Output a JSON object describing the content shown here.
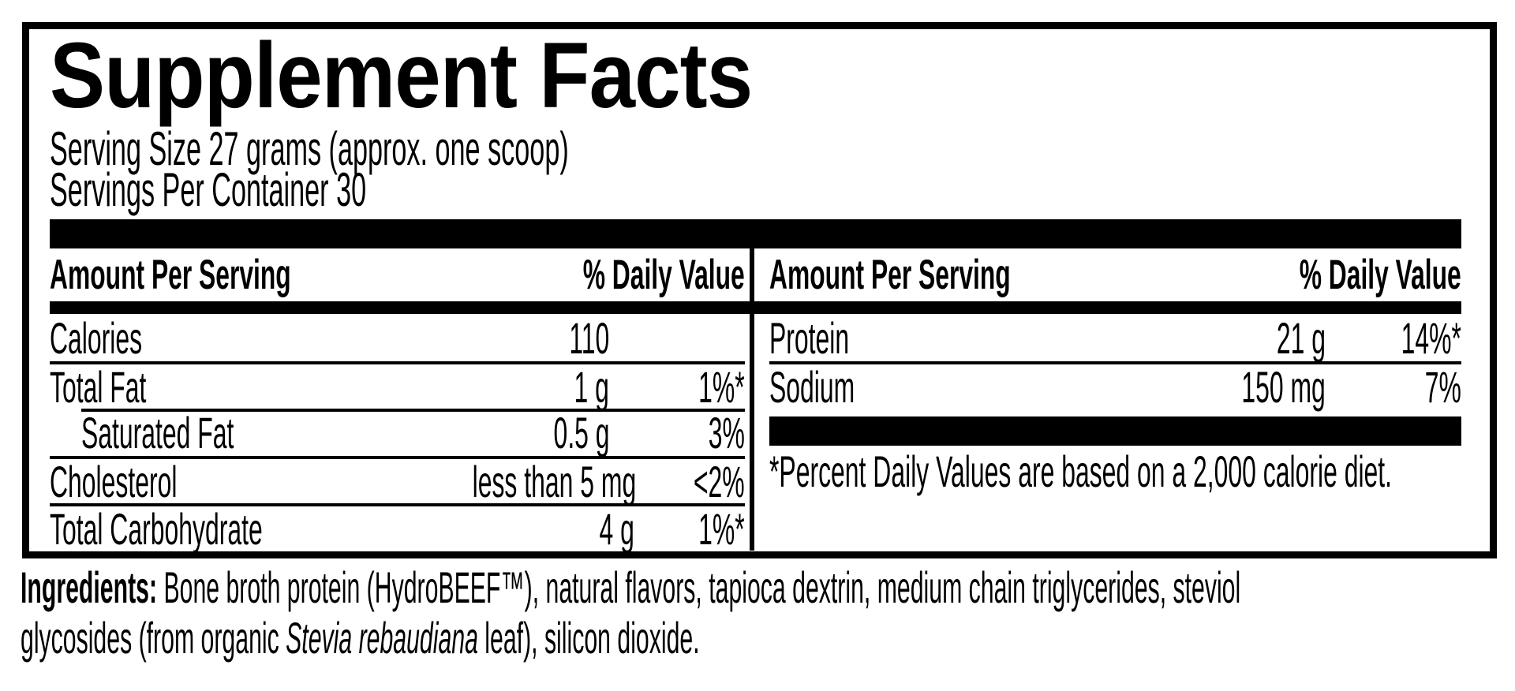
{
  "label": {
    "title": "Supplement Facts",
    "serving_size": "Serving Size 27 grams (approx. one scoop)",
    "servings_per_container": "Servings Per Container 30",
    "columns": [
      {
        "header": {
          "amount": "Amount Per Serving",
          "dv": "% Daily Value"
        },
        "rows": [
          {
            "name": "Calories",
            "amount": "110",
            "dv": ""
          },
          {
            "name": "Total Fat",
            "amount": "1 g",
            "dv": "1%*"
          },
          {
            "name": "Saturated Fat",
            "amount": "0.5 g",
            "dv": "3%"
          },
          {
            "name": "Cholesterol",
            "amount": "less than 5 mg",
            "dv": "<2%"
          },
          {
            "name": "Total Carbohydrate",
            "amount": "4 g",
            "dv": "1%*"
          }
        ]
      },
      {
        "header": {
          "amount": "Amount Per Serving",
          "dv": "% Daily Value"
        },
        "rows": [
          {
            "name": "Protein",
            "amount": "21 g",
            "dv": "14%*"
          },
          {
            "name": "Sodium",
            "amount": "150 mg",
            "dv": "7%"
          }
        ],
        "footnote": "*Percent Daily Values are based on a 2,000 calorie diet."
      }
    ],
    "ingredients": {
      "label": "Ingredients:",
      "line1": " Bone broth protein (HydroBEEF™), natural flavors, tapioca dextrin, medium chain triglycerides, steviol",
      "line2_pre_italic": "glycosides (from organic ",
      "italic": "Stevia rebaudiana",
      "line2_post_italic": " leaf), silicon dioxide."
    },
    "colors": {
      "ink": "#000000",
      "paper": "#ffffff"
    }
  }
}
